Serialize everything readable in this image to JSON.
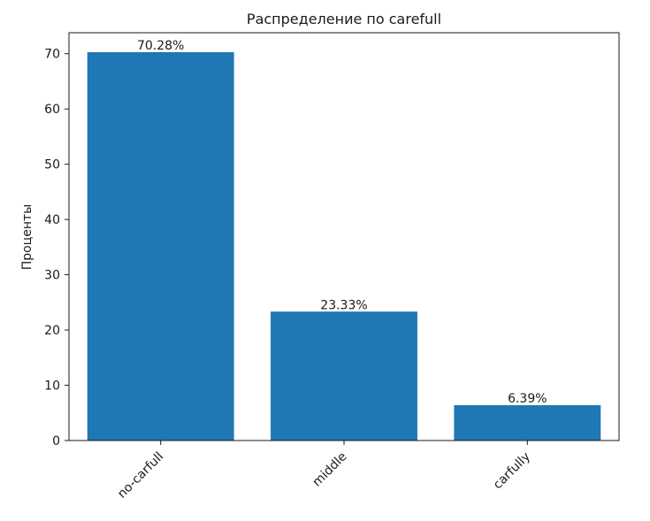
{
  "chart_data": {
    "type": "bar",
    "title": "Распределение по carefull",
    "xlabel": "",
    "ylabel": "Проценты",
    "categories": [
      "no-carfull",
      "middle",
      "carfully"
    ],
    "values": [
      70.28,
      23.33,
      6.39
    ],
    "data_labels": [
      "70.28%",
      "23.33%",
      "6.39%"
    ],
    "ylim": [
      0,
      73.8
    ],
    "yticks": [
      0,
      10,
      20,
      30,
      40,
      50,
      60,
      70
    ],
    "ytick_labels": [
      "0",
      "10",
      "20",
      "30",
      "40",
      "50",
      "60",
      "70"
    ],
    "bar_color": "#1f77b4",
    "grid": false,
    "xtick_rotation_deg": 45
  }
}
